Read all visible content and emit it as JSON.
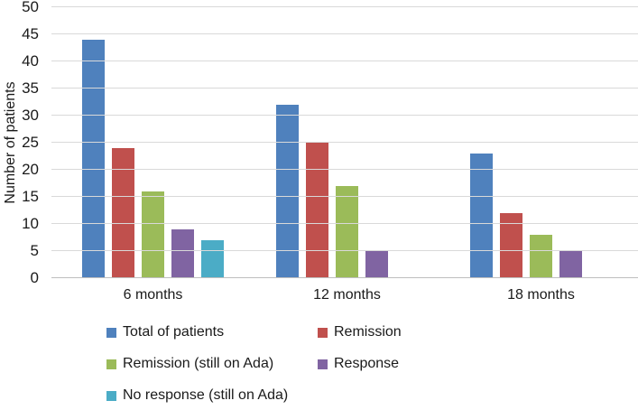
{
  "figure": {
    "background": "#ffffff"
  },
  "chart_data": {
    "type": "bar",
    "title": "",
    "xlabel": "",
    "ylabel": "Number of patients",
    "ylim": [
      0,
      50
    ],
    "ytick_step": 5,
    "yticks": [
      0,
      5,
      10,
      15,
      20,
      25,
      30,
      35,
      40,
      45,
      50
    ],
    "categories": [
      "6 months",
      "12 months",
      "18 months"
    ],
    "series": [
      {
        "name": "Total of patients",
        "color": "#4F81BD",
        "values": [
          44,
          32,
          23
        ]
      },
      {
        "name": "Remission",
        "color": "#C0504D",
        "values": [
          24,
          25,
          12
        ]
      },
      {
        "name": "Remission (still on Ada)",
        "color": "#9BBB59",
        "values": [
          16,
          17,
          8
        ]
      },
      {
        "name": "Response",
        "color": "#8064A2",
        "values": [
          9,
          5,
          5
        ]
      },
      {
        "name": "No response (still on Ada)",
        "color": "#4BACC6",
        "values": [
          7,
          null,
          null
        ]
      }
    ],
    "grid": true,
    "legend_position": "bottom-left",
    "grid_color": "#d9d9d9",
    "axis_line_color": "#bfbfbf",
    "text_color": "#1a1a1a"
  }
}
